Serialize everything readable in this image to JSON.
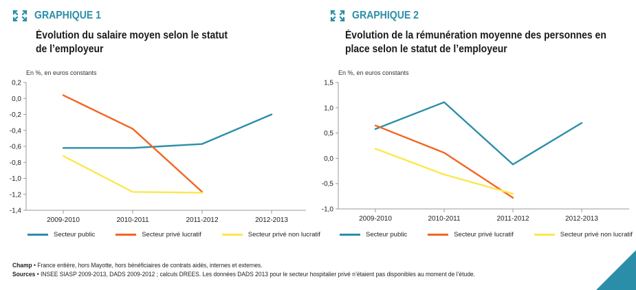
{
  "colors": {
    "accent": "#2a8ea8",
    "public": "#2a8ea8",
    "prive_lucratif": "#f26522",
    "prive_non_lucratif": "#fde74c",
    "axis": "#999999"
  },
  "chart_data": [
    {
      "type": "line",
      "label": "GRAPHIQUE 1",
      "title": "Évolution du salaire moyen selon le statut de l’employeur",
      "ylabel": "En %, en euros constants",
      "categories": [
        "2009-2010",
        "2010-2011",
        "2011-2012",
        "2012-2013"
      ],
      "ylim": [
        -1.4,
        0.2
      ],
      "yticks": [
        "0,2",
        "0,0",
        "-0,2",
        "-0,4",
        "-0,6",
        "-0,8",
        "-1,0",
        "-1,2",
        "-1,4"
      ],
      "ytick_values": [
        0.2,
        0.0,
        -0.2,
        -0.4,
        -0.6,
        -0.8,
        -1.0,
        -1.2,
        -1.4
      ],
      "legend_placement": "bottom",
      "grid": false,
      "series": [
        {
          "name": "Secteur public",
          "values": [
            -0.62,
            -0.62,
            -0.57,
            -0.2
          ]
        },
        {
          "name": "Secteur privé lucratif",
          "values": [
            0.04,
            -0.38,
            -1.17,
            null
          ]
        },
        {
          "name": "Secteur privé non lucratif",
          "values": [
            -0.72,
            -1.17,
            -1.18,
            null
          ]
        }
      ]
    },
    {
      "type": "line",
      "label": "GRAPHIQUE 2",
      "title": "Évolution de la rémunération moyenne des personnes en place selon le statut de l’employeur",
      "ylabel": "En %, en euros constants",
      "categories": [
        "2009-2010",
        "2010-2011",
        "2011-2012",
        "2012-2013"
      ],
      "ylim": [
        -1.0,
        1.5
      ],
      "yticks": [
        "1,5",
        "1,0",
        "0,5",
        "0,0",
        "-0,5",
        "-1,0"
      ],
      "ytick_values": [
        1.5,
        1.0,
        0.5,
        0.0,
        -0.5,
        -1.0
      ],
      "legend_placement": "bottom",
      "grid": false,
      "series": [
        {
          "name": "Secteur public",
          "values": [
            0.58,
            1.11,
            -0.12,
            0.7
          ]
        },
        {
          "name": "Secteur privé lucratif",
          "values": [
            0.65,
            0.11,
            -0.78,
            null
          ]
        },
        {
          "name": "Secteur privé non lucratif",
          "values": [
            0.19,
            -0.32,
            -0.7,
            null
          ]
        }
      ]
    }
  ],
  "notes": {
    "champ_label": "Champ",
    "champ_text": " • France entière, hors Mayotte, hors bénéficiaires de contrats aidés, internes et externes.",
    "sources_label": "Sources",
    "sources_text": " • INSEE SIASP 2009-2013, DADS 2009-2012 ; calculs DREES. Les données DADS 2013 pour le secteur hospitalier privé n’étaient pas disponibles au moment de l’étude."
  }
}
